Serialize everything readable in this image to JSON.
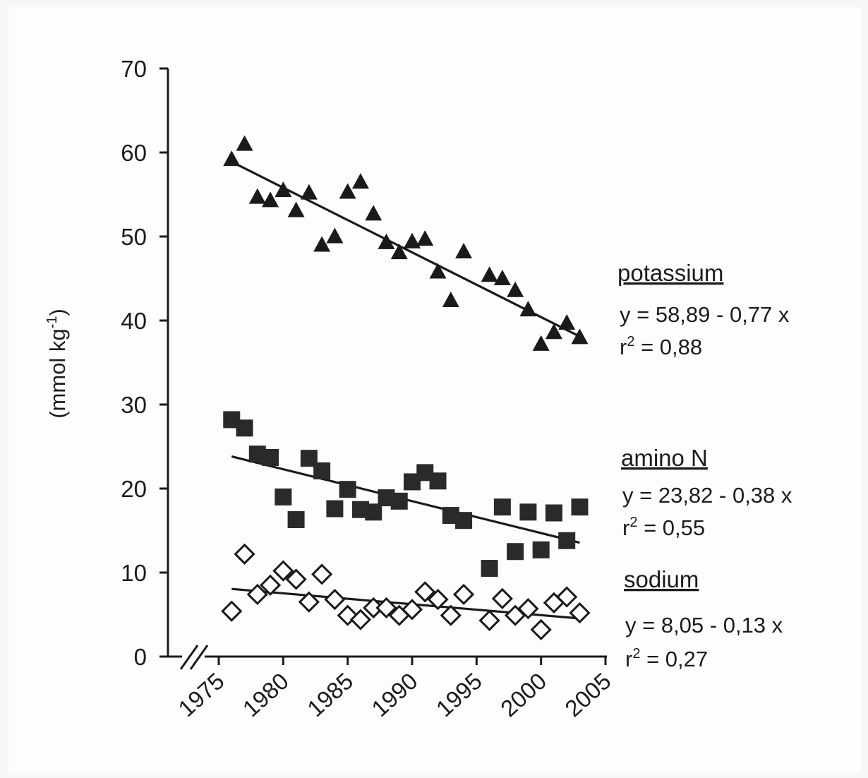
{
  "chart_data": {
    "type": "scatter",
    "title": "",
    "xlabel": "",
    "ylabel": "(mmol kg-1)",
    "ylabel_main": "(mmol kg",
    "ylabel_sup": "-1",
    "ylabel_close": ")",
    "xlim": [
      1973,
      2005
    ],
    "ylim": [
      0,
      70
    ],
    "x_ticks": [
      "1975",
      "1980",
      "1985",
      "1990",
      "1995",
      "2000",
      "2005"
    ],
    "y_ticks": [
      "0",
      "10",
      "20",
      "30",
      "40",
      "50",
      "60",
      "70"
    ],
    "axis_break": true,
    "grid": false,
    "series": [
      {
        "name": "potassium",
        "marker": "filled-triangle",
        "color": "#1a1a1a",
        "equation": "y = 58,89 - 0,77 x",
        "r2_prefix": "r",
        "r2_text": " = 0,88",
        "trend": {
          "intercept": 58.89,
          "slope": -0.77,
          "x_origin": 1976,
          "x_range": [
            1976,
            2003
          ]
        },
        "points": [
          {
            "x": 1976,
            "y": 59.1
          },
          {
            "x": 1977,
            "y": 60.9
          },
          {
            "x": 1978,
            "y": 54.6
          },
          {
            "x": 1979,
            "y": 54.2
          },
          {
            "x": 1980,
            "y": 55.4
          },
          {
            "x": 1981,
            "y": 53.0
          },
          {
            "x": 1982,
            "y": 55.1
          },
          {
            "x": 1983,
            "y": 48.9
          },
          {
            "x": 1984,
            "y": 49.9
          },
          {
            "x": 1985,
            "y": 55.2
          },
          {
            "x": 1986,
            "y": 56.4
          },
          {
            "x": 1987,
            "y": 52.6
          },
          {
            "x": 1988,
            "y": 49.2
          },
          {
            "x": 1989,
            "y": 48.0
          },
          {
            "x": 1990,
            "y": 49.3
          },
          {
            "x": 1991,
            "y": 49.6
          },
          {
            "x": 1992,
            "y": 45.7
          },
          {
            "x": 1993,
            "y": 42.3
          },
          {
            "x": 1994,
            "y": 48.1
          },
          {
            "x": 1996,
            "y": 45.3
          },
          {
            "x": 1997,
            "y": 44.9
          },
          {
            "x": 1998,
            "y": 43.5
          },
          {
            "x": 1999,
            "y": 41.2
          },
          {
            "x": 2000,
            "y": 37.1
          },
          {
            "x": 2001,
            "y": 38.5
          },
          {
            "x": 2002,
            "y": 39.6
          },
          {
            "x": 2003,
            "y": 37.9
          }
        ]
      },
      {
        "name": "amino N",
        "marker": "filled-square",
        "color": "#2a2a2a",
        "equation": "y = 23,82 - 0,38 x",
        "r2_prefix": "r",
        "r2_text": " = 0,55",
        "trend": {
          "intercept": 23.82,
          "slope": -0.38,
          "x_origin": 1976,
          "x_range": [
            1976,
            2003
          ]
        },
        "points": [
          {
            "x": 1976,
            "y": 28.2
          },
          {
            "x": 1977,
            "y": 27.2
          },
          {
            "x": 1978,
            "y": 24.1
          },
          {
            "x": 1979,
            "y": 23.7
          },
          {
            "x": 1980,
            "y": 19.0
          },
          {
            "x": 1981,
            "y": 16.3
          },
          {
            "x": 1982,
            "y": 23.6
          },
          {
            "x": 1983,
            "y": 22.1
          },
          {
            "x": 1984,
            "y": 17.6
          },
          {
            "x": 1985,
            "y": 19.9
          },
          {
            "x": 1986,
            "y": 17.5
          },
          {
            "x": 1987,
            "y": 17.2
          },
          {
            "x": 1988,
            "y": 18.9
          },
          {
            "x": 1989,
            "y": 18.5
          },
          {
            "x": 1990,
            "y": 20.8
          },
          {
            "x": 1991,
            "y": 21.9
          },
          {
            "x": 1992,
            "y": 20.9
          },
          {
            "x": 1993,
            "y": 16.8
          },
          {
            "x": 1994,
            "y": 16.2
          },
          {
            "x": 1996,
            "y": 10.5
          },
          {
            "x": 1997,
            "y": 17.8
          },
          {
            "x": 1998,
            "y": 12.5
          },
          {
            "x": 1999,
            "y": 17.2
          },
          {
            "x": 2000,
            "y": 12.7
          },
          {
            "x": 2001,
            "y": 17.1
          },
          {
            "x": 2002,
            "y": 13.8
          },
          {
            "x": 2003,
            "y": 17.8
          }
        ]
      },
      {
        "name": "sodium",
        "marker": "open-diamond",
        "color": "#1a1a1a",
        "equation": "y = 8,05 - 0,13 x",
        "r2_prefix": "r",
        "r2_text": " = 0,27",
        "trend": {
          "intercept": 8.05,
          "slope": -0.13,
          "x_origin": 1976,
          "x_range": [
            1976,
            2003
          ]
        },
        "points": [
          {
            "x": 1976,
            "y": 5.4
          },
          {
            "x": 1977,
            "y": 12.2
          },
          {
            "x": 1978,
            "y": 7.4
          },
          {
            "x": 1979,
            "y": 8.5
          },
          {
            "x": 1980,
            "y": 10.2
          },
          {
            "x": 1981,
            "y": 9.2
          },
          {
            "x": 1982,
            "y": 6.5
          },
          {
            "x": 1983,
            "y": 9.8
          },
          {
            "x": 1984,
            "y": 6.8
          },
          {
            "x": 1985,
            "y": 4.9
          },
          {
            "x": 1986,
            "y": 4.4
          },
          {
            "x": 1987,
            "y": 5.8
          },
          {
            "x": 1988,
            "y": 5.8
          },
          {
            "x": 1989,
            "y": 4.9
          },
          {
            "x": 1990,
            "y": 5.6
          },
          {
            "x": 1991,
            "y": 7.7
          },
          {
            "x": 1992,
            "y": 6.8
          },
          {
            "x": 1993,
            "y": 4.9
          },
          {
            "x": 1994,
            "y": 7.4
          },
          {
            "x": 1996,
            "y": 4.3
          },
          {
            "x": 1997,
            "y": 6.9
          },
          {
            "x": 1998,
            "y": 4.9
          },
          {
            "x": 1999,
            "y": 5.7
          },
          {
            "x": 2000,
            "y": 3.2
          },
          {
            "x": 2001,
            "y": 6.4
          },
          {
            "x": 2002,
            "y": 7.1
          },
          {
            "x": 2003,
            "y": 5.2
          }
        ]
      }
    ]
  }
}
